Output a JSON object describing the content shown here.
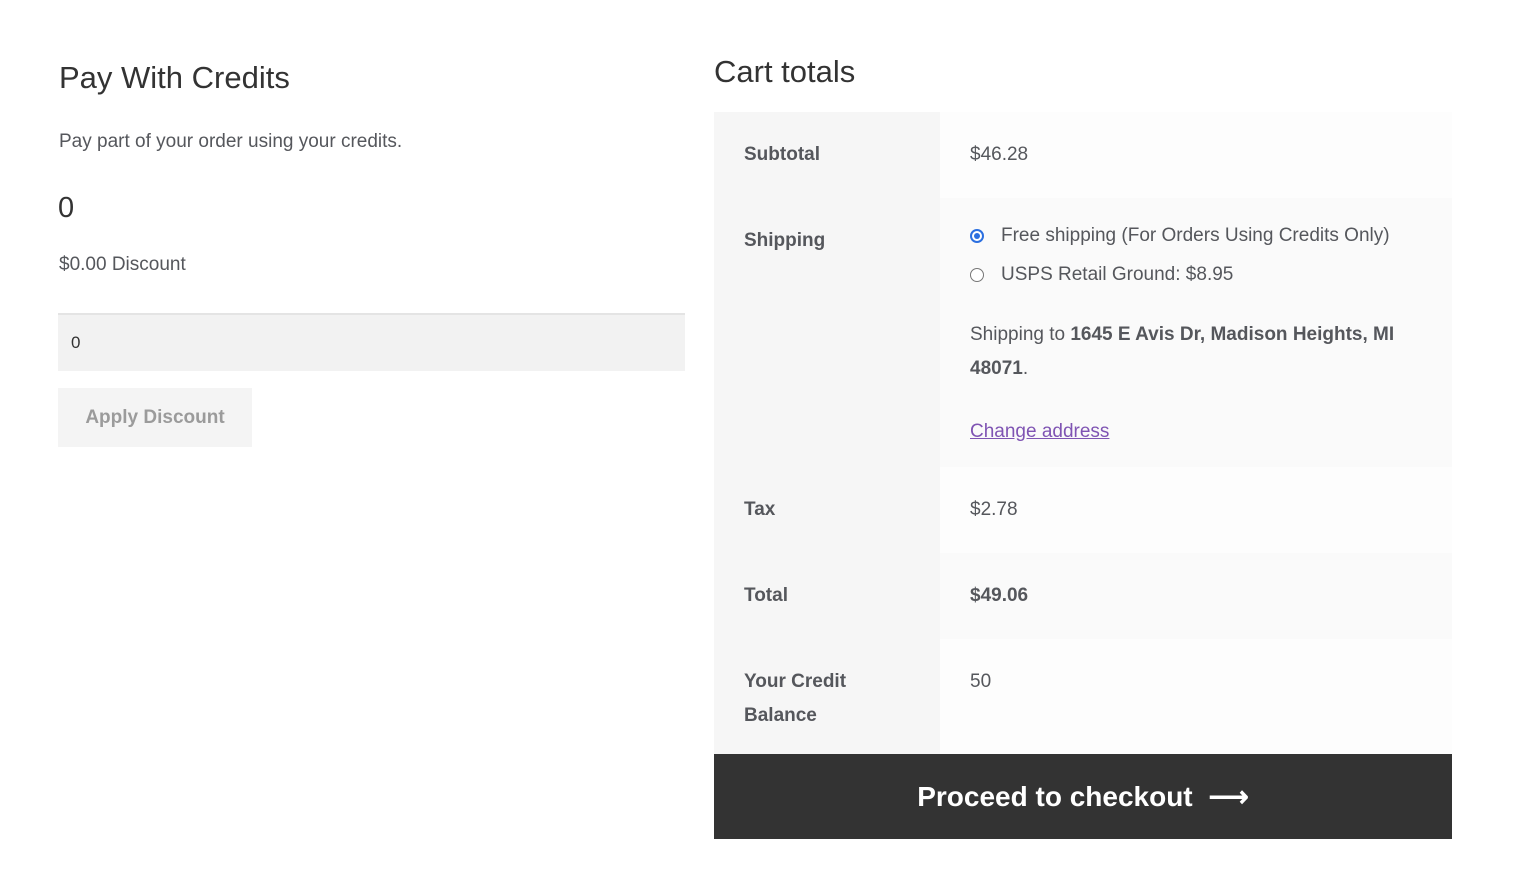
{
  "pay_with_credits": {
    "title": "Pay With Credits",
    "description": "Pay part of your order using your credits.",
    "amount": "0",
    "discount_text": "$0.00 Discount",
    "input_value": "0",
    "apply_button": "Apply Discount"
  },
  "cart_totals": {
    "title": "Cart totals",
    "subtotal_label": "Subtotal",
    "subtotal_value": "$46.28",
    "shipping_label": "Shipping",
    "shipping_options": [
      {
        "label": "Free shipping (For Orders Using Credits Only)",
        "selected": true
      },
      {
        "label": "USPS Retail Ground: $8.95",
        "selected": false
      }
    ],
    "shipping_to_prefix": "Shipping to ",
    "shipping_address": "1645 E Avis Dr, Madison Heights, MI 48071",
    "shipping_to_suffix": ".",
    "change_address": "Change address",
    "tax_label": "Tax",
    "tax_value": "$2.78",
    "total_label": "Total",
    "total_value": "$49.06",
    "credit_label": "Your Credit Balance",
    "credit_value": "50"
  },
  "checkout": {
    "label": "Proceed to checkout",
    "icon": "arrow-right-icon"
  },
  "colors": {
    "accent_radio": "#2b6fe0",
    "link": "#7f54b3",
    "checkout_bg": "#333333"
  }
}
